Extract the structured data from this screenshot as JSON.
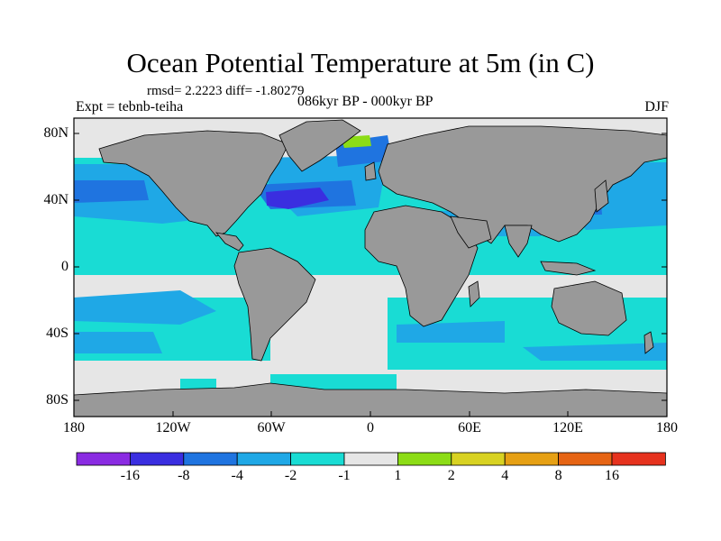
{
  "title": "Ocean Potential Temperature at 5m (in C)",
  "stats_line": "rmsd= 2.2223 diff= -1.80279",
  "experiment": "Expt = tebnb-teiha",
  "period": "086kyr BP - 000kyr BP",
  "season": "DJF",
  "lat_ticks": [
    "80N",
    "40N",
    "0",
    "40S",
    "80S"
  ],
  "lon_ticks": [
    "180",
    "120W",
    "60W",
    "0",
    "60E",
    "120E",
    "180"
  ],
  "colorbar": {
    "labels": [
      "-16",
      "-8",
      "-4",
      "-2",
      "-1",
      "1",
      "2",
      "4",
      "8",
      "16"
    ],
    "colors": [
      "#8a2be2",
      "#3a2ee0",
      "#1f74e0",
      "#1fa8e6",
      "#19dcd4",
      "#e6e6e6",
      "#8cdc16",
      "#d8d222",
      "#e6a014",
      "#e66414",
      "#e6321e"
    ]
  },
  "colors": {
    "land": "#999999",
    "no_change": "#e6e6e6"
  }
}
